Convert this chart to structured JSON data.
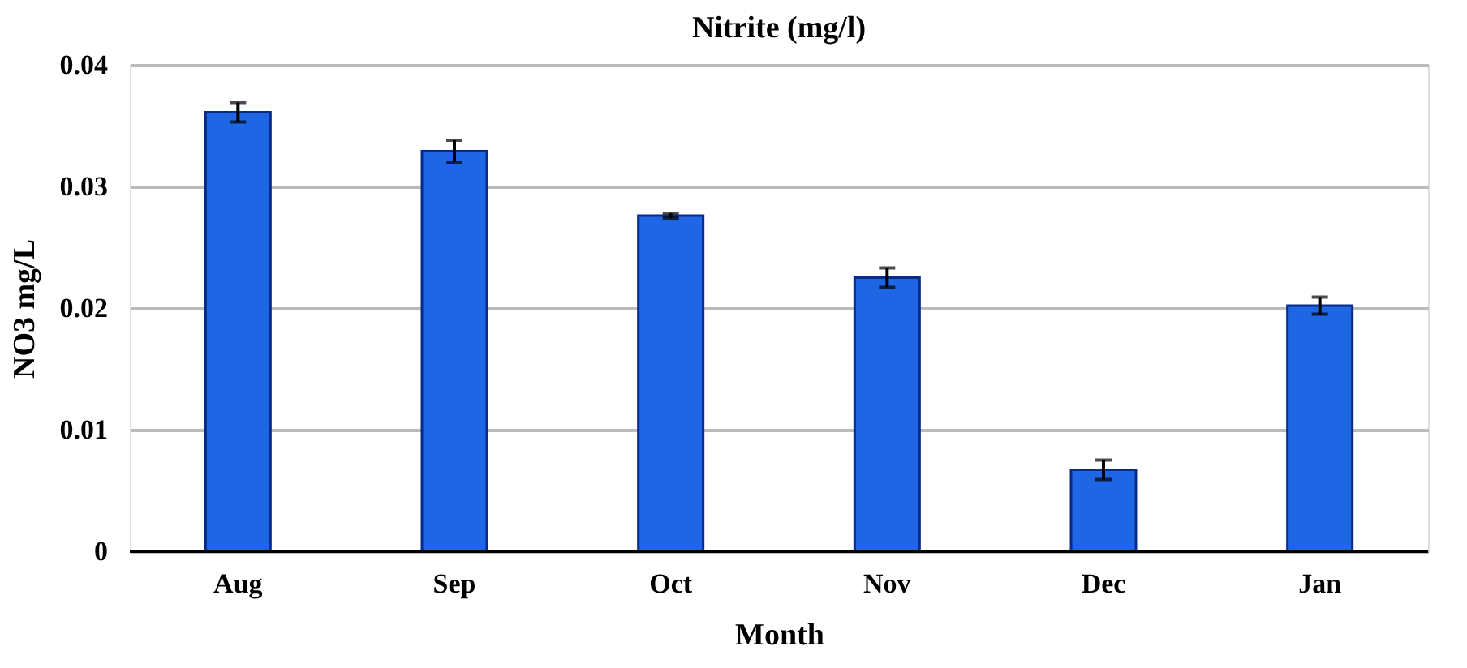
{
  "chart_data": {
    "type": "bar",
    "title": "Nitrite (mg/l)",
    "xlabel": "Month",
    "ylabel": "NO3 mg/L",
    "categories": [
      "Aug",
      "Sep",
      "Oct",
      "Nov",
      "Dec",
      "Jan"
    ],
    "values": [
      0.0361,
      0.0329,
      0.0276,
      0.0225,
      0.0067,
      0.0202
    ],
    "errors": [
      0.0008,
      0.0009,
      0.0002,
      0.0008,
      0.0008,
      0.0007
    ],
    "color": "#1f66e5",
    "ylim": [
      0,
      0.04
    ],
    "yticks": [
      0,
      0.01,
      0.02,
      0.03,
      0.04
    ],
    "grid": "y"
  }
}
